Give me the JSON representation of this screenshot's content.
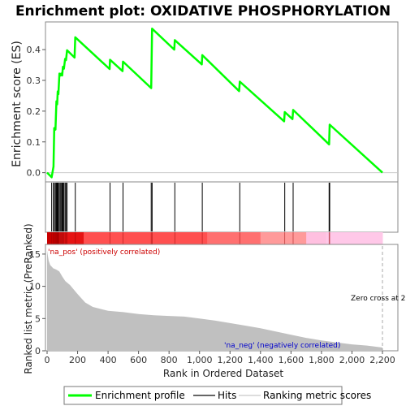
{
  "title": "Enrichment plot: OXIDATIVE PHOSPHORYLATION",
  "chart_data": {
    "type": "line",
    "n_genes": 2200,
    "top_panel": {
      "ylabel": "Enrichment score (ES)",
      "ylim": [
        -0.03,
        0.49
      ],
      "yticks": [
        0.0,
        0.1,
        0.2,
        0.3,
        0.4
      ],
      "ytick_labels": [
        "0.0",
        "0.1",
        "0.2",
        "0.3",
        "0.4"
      ],
      "series": [
        {
          "name": "Enrichment profile",
          "color": "#00ff00",
          "x": [
            0,
            30,
            42,
            47,
            55,
            61,
            66,
            70,
            74,
            81,
            89,
            92,
            99,
            104,
            110,
            118,
            124,
            131,
            180,
            185,
            410,
            413,
            495,
            498,
            683,
            689,
            834,
            838,
            1015,
            1018,
            1260,
            1264,
            1555,
            1559,
            1610,
            1614,
            1850,
            1854,
            2200
          ],
          "y": [
            0.0,
            -0.015,
            0.02,
            0.145,
            0.14,
            0.232,
            0.222,
            0.264,
            0.255,
            0.322,
            0.316,
            0.322,
            0.316,
            0.344,
            0.338,
            0.37,
            0.366,
            0.398,
            0.374,
            0.44,
            0.337,
            0.367,
            0.33,
            0.361,
            0.275,
            0.468,
            0.4,
            0.431,
            0.352,
            0.382,
            0.265,
            0.296,
            0.167,
            0.197,
            0.174,
            0.204,
            0.092,
            0.156,
            0.0
          ]
        }
      ]
    },
    "hits_panel": {
      "hit_positions": [
        30,
        42,
        47,
        55,
        61,
        66,
        70,
        74,
        81,
        89,
        92,
        99,
        104,
        110,
        118,
        124,
        131,
        185,
        413,
        498,
        683,
        689,
        838,
        1018,
        1264,
        1559,
        1614,
        1850,
        1854
      ],
      "color_bar": [
        {
          "from": 0,
          "to": 80,
          "color": "#c80000"
        },
        {
          "from": 80,
          "to": 240,
          "color": "#e61414"
        },
        {
          "from": 240,
          "to": 1050,
          "color": "#ff5050"
        },
        {
          "from": 1050,
          "to": 1400,
          "color": "#ff7070"
        },
        {
          "from": 1400,
          "to": 1700,
          "color": "#ff9a9a"
        },
        {
          "from": 1700,
          "to": 1830,
          "color": "#ffc0e0"
        },
        {
          "from": 1830,
          "to": 2200,
          "color": "#ffc8e8"
        }
      ]
    },
    "bottom_panel": {
      "ylabel": "Ranked list metric (PreRanked)",
      "ylim": [
        0,
        16.5
      ],
      "yticks": [
        0,
        5,
        10,
        15
      ],
      "ytick_labels": [
        "0",
        "5",
        "10",
        "15"
      ],
      "xlabel": "Rank in Ordered Dataset",
      "xticks": [
        0,
        200,
        400,
        600,
        800,
        1000,
        1200,
        1400,
        1600,
        1800,
        2000,
        2200
      ],
      "xtick_labels": [
        "0",
        "200",
        "400",
        "600",
        "800",
        "1,000",
        "1,200",
        "1,400",
        "1,600",
        "1,800",
        "2,000",
        "2,200"
      ],
      "metric": {
        "x": [
          0,
          10,
          20,
          40,
          60,
          80,
          100,
          120,
          150,
          200,
          250,
          300,
          400,
          500,
          600,
          700,
          800,
          900,
          1000,
          1100,
          1200,
          1300,
          1400,
          1500,
          1600,
          1700,
          1800,
          1900,
          2000,
          2100,
          2200
        ],
        "y": [
          15.5,
          14.0,
          13.3,
          12.8,
          12.6,
          12.3,
          11.5,
          10.8,
          10.2,
          8.8,
          7.5,
          6.8,
          6.2,
          6.0,
          5.7,
          5.5,
          5.4,
          5.3,
          5.0,
          4.7,
          4.3,
          3.9,
          3.5,
          3.0,
          2.5,
          2.0,
          1.6,
          1.3,
          1.0,
          0.8,
          0.5
        ]
      },
      "annotations": {
        "pos": "'na_pos' (positively correlated)",
        "neg": "'na_neg' (negatively correlated)",
        "zero": "Zero cross at 2"
      }
    },
    "legend": [
      "Enrichment profile",
      "Hits",
      "Ranking metric scores"
    ]
  }
}
